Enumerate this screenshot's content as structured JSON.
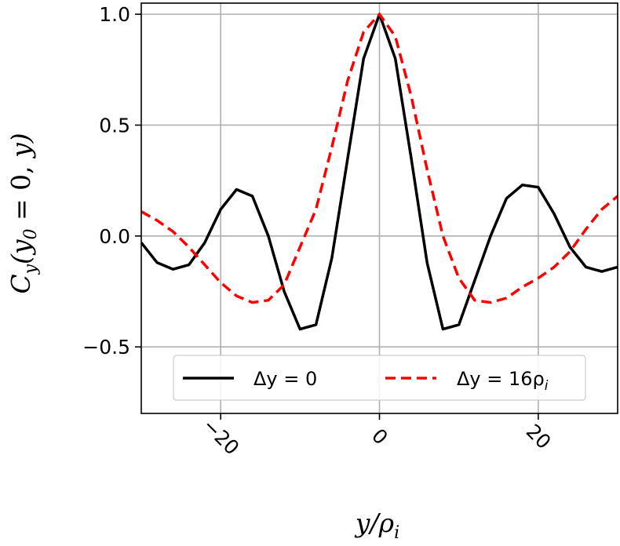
{
  "chart_data": {
    "type": "line",
    "xlabel": "y/ρ_i",
    "ylabel": "C_y(y_0 = 0, y)",
    "xlim": [
      -30,
      30
    ],
    "ylim": [
      -0.8,
      1.05
    ],
    "xticks": [
      -20,
      0,
      20
    ],
    "xtick_labels": [
      "−20",
      "0",
      "20"
    ],
    "yticks": [
      1.0,
      0.5,
      0.0,
      -0.5
    ],
    "ytick_labels": [
      "1.0",
      "0.5",
      "0.0",
      "−0.5"
    ],
    "grid": true,
    "legend_position": "lower-center",
    "series": [
      {
        "name": "Δy = 0",
        "color": "#000000",
        "dash": "solid",
        "x": [
          -30,
          -28,
          -26,
          -24,
          -22,
          -20,
          -18,
          -16,
          -14,
          -12,
          -10,
          -8,
          -6,
          -4,
          -2,
          0,
          2,
          4,
          6,
          8,
          10,
          12,
          14,
          16,
          18,
          20,
          22,
          24,
          26,
          28,
          30
        ],
        "y": [
          -0.03,
          -0.12,
          -0.15,
          -0.13,
          -0.03,
          0.12,
          0.21,
          0.18,
          0.0,
          -0.25,
          -0.42,
          -0.4,
          -0.1,
          0.35,
          0.8,
          1.0,
          0.8,
          0.35,
          -0.12,
          -0.42,
          -0.4,
          -0.2,
          0.0,
          0.17,
          0.23,
          0.22,
          0.1,
          -0.05,
          -0.14,
          -0.16,
          -0.14
        ]
      },
      {
        "name": "Δy = 16ρ_i",
        "color": "#ff0000",
        "dash": "dashed",
        "x": [
          -30,
          -28,
          -26,
          -24,
          -22,
          -20,
          -18,
          -16,
          -14,
          -12,
          -10,
          -8,
          -6,
          -4,
          -2,
          0,
          2,
          4,
          6,
          8,
          10,
          12,
          14,
          16,
          18,
          20,
          22,
          24,
          26,
          28,
          30
        ],
        "y": [
          0.11,
          0.07,
          0.02,
          -0.05,
          -0.13,
          -0.21,
          -0.27,
          -0.3,
          -0.29,
          -0.22,
          -0.05,
          0.12,
          0.4,
          0.7,
          0.92,
          1.0,
          0.9,
          0.63,
          0.3,
          0.0,
          -0.19,
          -0.29,
          -0.3,
          -0.28,
          -0.23,
          -0.19,
          -0.14,
          -0.07,
          0.03,
          0.12,
          0.18
        ]
      }
    ]
  },
  "legend": {
    "entry1_text": "Δy = 0",
    "entry2_text": "Δy = 16ρ"
  }
}
